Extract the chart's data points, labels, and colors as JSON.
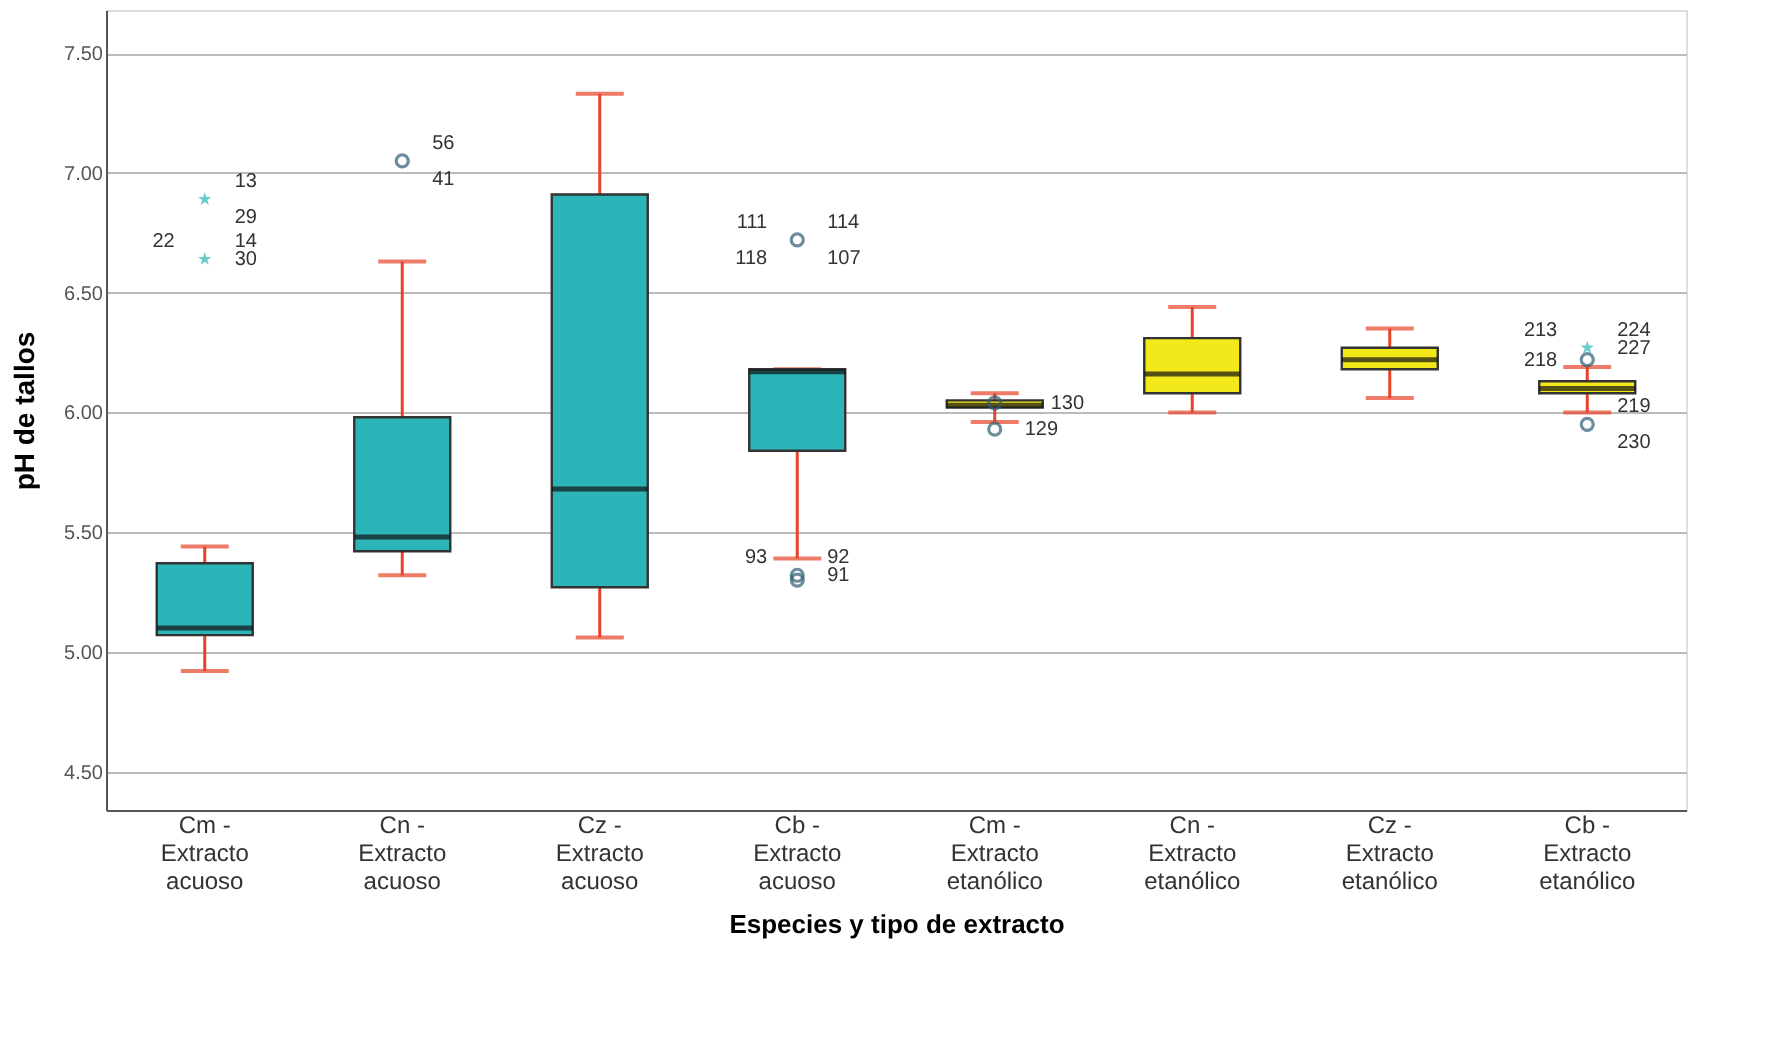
{
  "chart_data": {
    "type": "box",
    "xlabel": "Especies y tipo de extracto",
    "ylabel": "pH de tallos",
    "categories": [
      "Cm - Extracto acuoso",
      "Cn - Extracto acuoso",
      "Cz - Extracto acuoso",
      "Cb - Extracto acuoso",
      "Cm - Extracto etanólico",
      "Cn - Extracto etanólico",
      "Cz - Extracto etanólico",
      "Cb - Extracto etanólico"
    ],
    "colors": [
      "#2bb5b8",
      "#2bb5b8",
      "#2bb5b8",
      "#2bb5b8",
      "#f2e81a",
      "#f2e81a",
      "#f2e81a",
      "#f2e81a"
    ],
    "boxes": [
      {
        "low": 4.92,
        "q1": 5.07,
        "median": 5.1,
        "q3": 5.37,
        "high": 5.44
      },
      {
        "low": 5.32,
        "q1": 5.42,
        "median": 5.48,
        "q3": 5.98,
        "high": 6.63
      },
      {
        "low": 5.06,
        "q1": 5.27,
        "median": 5.68,
        "q3": 6.91,
        "high": 7.33
      },
      {
        "low": 5.39,
        "q1": 5.84,
        "median": 6.17,
        "q3": 6.18,
        "high": 6.18
      },
      {
        "low": 5.96,
        "q1": 6.02,
        "median": 6.03,
        "q3": 6.05,
        "high": 6.08
      },
      {
        "low": 6.0,
        "q1": 6.08,
        "median": 6.16,
        "q3": 6.31,
        "high": 6.44
      },
      {
        "low": 6.06,
        "q1": 6.18,
        "median": 6.22,
        "q3": 6.27,
        "high": 6.35
      },
      {
        "low": 6.0,
        "q1": 6.08,
        "median": 6.1,
        "q3": 6.13,
        "high": 6.19
      }
    ],
    "series": [
      {
        "type": "scatter",
        "marker": "star",
        "color": "#2bb5b8",
        "x": [
          "Cm - Extracto acuoso",
          "Cm - Extracto acuoso",
          "Cb - Extracto etanólico"
        ],
        "values": [
          6.89,
          6.64,
          6.27
        ]
      },
      {
        "type": "scatter",
        "marker": "circle",
        "color": "#2f5f73",
        "x": [
          "Cn - Extracto acuoso",
          "Cb - Extracto acuoso",
          "Cb - Extracto acuoso",
          "Cb - Extracto acuoso",
          "Cm - Extracto etanólico",
          "Cm - Extracto etanólico",
          "Cb - Extracto etanólico",
          "Cb - Extracto etanólico"
        ],
        "values": [
          7.05,
          6.72,
          5.32,
          5.3,
          5.93,
          6.04,
          6.22,
          5.95
        ]
      }
    ],
    "ylim": [
      4.34,
      7.68
    ],
    "yticks": [
      {
        "value": 4.5,
        "label": "4.50"
      },
      {
        "value": 5.0,
        "label": "5.00"
      },
      {
        "value": 5.5,
        "label": "5.50"
      },
      {
        "value": 6.0,
        "label": "6.00"
      },
      {
        "value": 6.5,
        "label": "6.50"
      },
      {
        "value": 7.0,
        "label": "7.00"
      },
      {
        "value": 7.5,
        "label": "7.50"
      }
    ],
    "grid": "y",
    "annotations": [
      {
        "text": "13",
        "x": "Cm - Extracto acuoso",
        "y": 6.89
      },
      {
        "text": "29",
        "x": "Cm - Extracto acuoso",
        "y": 6.89
      },
      {
        "text": "22",
        "x": "Cm - Extracto acuoso",
        "y": 6.64
      },
      {
        "text": "14",
        "x": "Cm - Extracto acuoso",
        "y": 6.64
      },
      {
        "text": "30",
        "x": "Cm - Extracto acuoso",
        "y": 6.64
      },
      {
        "text": "56",
        "x": "Cn - Extracto acuoso",
        "y": 7.05
      },
      {
        "text": "41",
        "x": "Cn - Extracto acuoso",
        "y": 7.05
      },
      {
        "text": "111",
        "x": "Cb - Extracto acuoso",
        "y": 6.72
      },
      {
        "text": "114",
        "x": "Cb - Extracto acuoso",
        "y": 6.72
      },
      {
        "text": "118",
        "x": "Cb - Extracto acuoso",
        "y": 6.72
      },
      {
        "text": "107",
        "x": "Cb - Extracto acuoso",
        "y": 6.72
      },
      {
        "text": "93",
        "x": "Cb - Extracto acuoso",
        "y": 5.32
      },
      {
        "text": "92",
        "x": "Cb - Extracto acuoso",
        "y": 5.32
      },
      {
        "text": "91",
        "x": "Cb - Extracto acuoso",
        "y": 5.32
      },
      {
        "text": "130",
        "x": "Cm - Extracto etanólico",
        "y": 6.04
      },
      {
        "text": "129",
        "x": "Cm - Extracto etanólico",
        "y": 5.93
      },
      {
        "text": "213",
        "x": "Cb - Extracto etanólico",
        "y": 6.27
      },
      {
        "text": "224",
        "x": "Cb - Extracto etanólico",
        "y": 6.27
      },
      {
        "text": "227",
        "x": "Cb - Extracto etanólico",
        "y": 6.27
      },
      {
        "text": "218",
        "x": "Cb - Extracto etanólico",
        "y": 6.22
      },
      {
        "text": "219",
        "x": "Cb - Extracto etanólico",
        "y": 5.95
      },
      {
        "text": "230",
        "x": "Cb - Extracto etanólico",
        "y": 5.95
      }
    ]
  }
}
